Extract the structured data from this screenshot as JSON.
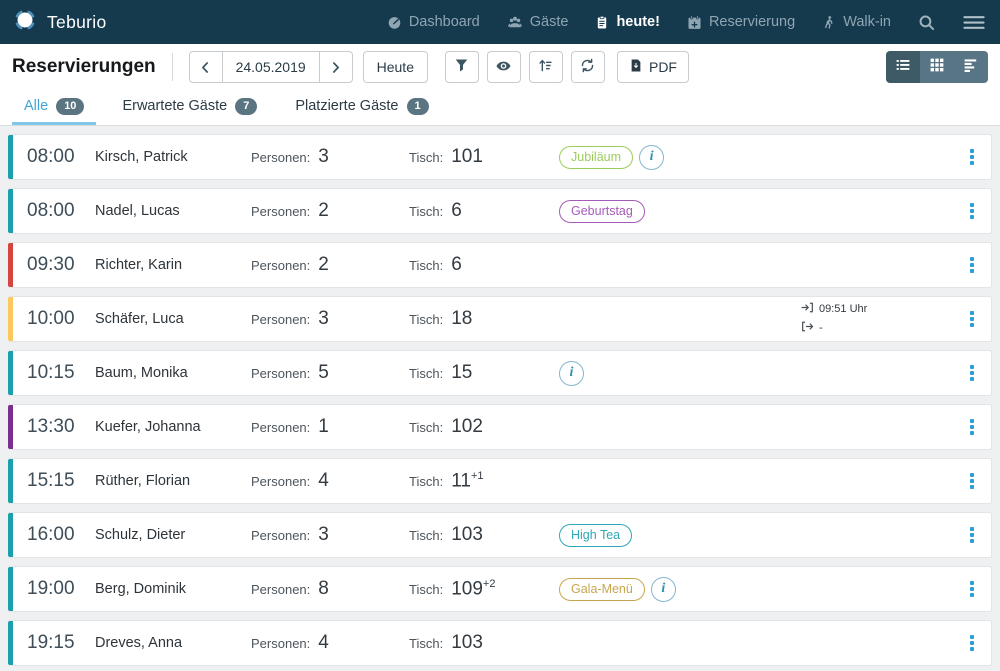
{
  "nav": {
    "brand": "Teburio",
    "items": [
      {
        "label": "Dashboard",
        "icon": "dashboard-icon",
        "active": false
      },
      {
        "label": "Gäste",
        "icon": "guests-icon",
        "active": false
      },
      {
        "label": "heute!",
        "icon": "today-icon",
        "active": true
      },
      {
        "label": "Reservierung",
        "icon": "reservation-icon",
        "active": false
      },
      {
        "label": "Walk-in",
        "icon": "walkin-icon",
        "active": false
      }
    ]
  },
  "toolbar": {
    "title": "Reservierungen",
    "date_value": "24.05.2019",
    "today_label": "Heute",
    "pdf_label": "PDF",
    "icon_buttons": [
      {
        "name": "filter-button",
        "icon": "filter-icon"
      },
      {
        "name": "visibility-button",
        "icon": "eye-icon"
      },
      {
        "name": "sort-button",
        "icon": "sort-icon"
      },
      {
        "name": "refresh-button",
        "icon": "refresh-icon"
      }
    ],
    "view_buttons": [
      {
        "name": "list-view-button",
        "icon": "list-view-icon",
        "active": true
      },
      {
        "name": "grid-view-button",
        "icon": "grid-view-icon",
        "active": false
      },
      {
        "name": "chart-view-button",
        "icon": "chart-view-icon",
        "active": false
      }
    ]
  },
  "tabs": [
    {
      "label": "Alle",
      "count": "10",
      "active": true
    },
    {
      "label": "Erwartete Gäste",
      "count": "7",
      "active": false
    },
    {
      "label": "Platzierte Gäste",
      "count": "1",
      "active": false
    }
  ],
  "list": {
    "persons_label": "Personen:",
    "table_label": "Tisch:",
    "checkin_suffix": "Uhr"
  },
  "rows": [
    {
      "time": "08:00",
      "name": "Kirsch, Patrick",
      "persons": "3",
      "table": "101",
      "table_sup": "",
      "badges": [
        {
          "label": "Jubiläum",
          "color": "#9ccd5a"
        }
      ],
      "info": true,
      "status_color": "#1ba0ac",
      "checkin": "",
      "checkout": ""
    },
    {
      "time": "08:00",
      "name": "Nadel, Lucas",
      "persons": "2",
      "table": "6",
      "table_sup": "",
      "badges": [
        {
          "label": "Geburtstag",
          "color": "#a55cb8"
        }
      ],
      "info": false,
      "status_color": "#1ba0ac",
      "checkin": "",
      "checkout": ""
    },
    {
      "time": "09:30",
      "name": "Richter, Karin",
      "persons": "2",
      "table": "6",
      "table_sup": "",
      "badges": [],
      "info": false,
      "status_color": "#d64440",
      "checkin": "",
      "checkout": ""
    },
    {
      "time": "10:00",
      "name": "Schäfer, Luca",
      "persons": "3",
      "table": "18",
      "table_sup": "",
      "badges": [],
      "info": false,
      "status_color": "#fcc75e",
      "checkin": "09:51 Uhr",
      "checkout": "-"
    },
    {
      "time": "10:15",
      "name": "Baum, Monika",
      "persons": "5",
      "table": "15",
      "table_sup": "",
      "badges": [],
      "info": true,
      "status_color": "#1ba0ac",
      "checkin": "",
      "checkout": ""
    },
    {
      "time": "13:30",
      "name": "Kuefer, Johanna",
      "persons": "1",
      "table": "102",
      "table_sup": "",
      "badges": [],
      "info": false,
      "status_color": "#7c2d8e",
      "checkin": "",
      "checkout": ""
    },
    {
      "time": "15:15",
      "name": "Rüther, Florian",
      "persons": "4",
      "table": "11",
      "table_sup": "+1",
      "badges": [],
      "info": false,
      "status_color": "#1ba0ac",
      "checkin": "",
      "checkout": ""
    },
    {
      "time": "16:00",
      "name": "Schulz, Dieter",
      "persons": "3",
      "table": "103",
      "table_sup": "",
      "badges": [
        {
          "label": "High Tea",
          "color": "#2fa7b5"
        }
      ],
      "info": false,
      "status_color": "#1ba0ac",
      "checkin": "",
      "checkout": ""
    },
    {
      "time": "19:00",
      "name": "Berg, Dominik",
      "persons": "8",
      "table": "109",
      "table_sup": "+2",
      "badges": [
        {
          "label": "Gala-Menü",
          "color": "#c7a64f"
        }
      ],
      "info": true,
      "status_color": "#1ba0ac",
      "checkin": "",
      "checkout": ""
    },
    {
      "time": "19:15",
      "name": "Dreves, Anna",
      "persons": "4",
      "table": "103",
      "table_sup": "",
      "badges": [],
      "info": false,
      "status_color": "#1ba0ac",
      "checkin": "",
      "checkout": ""
    }
  ],
  "colors": {
    "nav_bg": "#15394d",
    "nav_text": "#8fa6b2",
    "nav_active_text": "#ffffff",
    "accent_teal": "#1ba0ac",
    "accent_red": "#d64440",
    "accent_amber": "#fcc75e",
    "accent_purple": "#7c2d8e",
    "kebab_blue": "#2b9fd8",
    "tab_active": "#41a4d8",
    "tab_underline": "#82c7e8",
    "tab_count_bg": "#5b7482",
    "info_border": "#84b7cd"
  }
}
